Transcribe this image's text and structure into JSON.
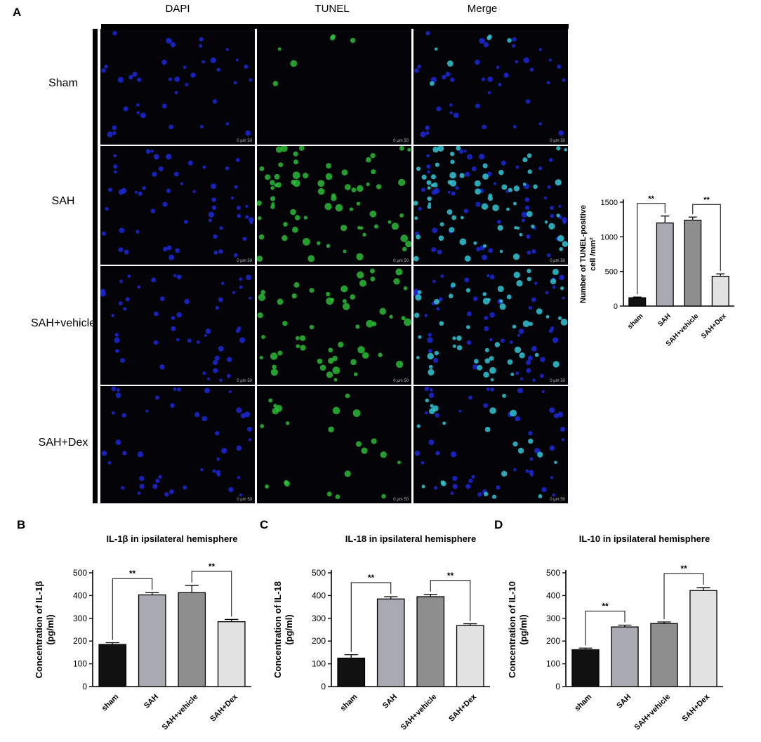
{
  "panels": {
    "A": {
      "letter": "A",
      "column_headers": [
        "DAPI",
        "TUNEL",
        "Merge"
      ],
      "row_headers": [
        "Sham",
        "SAH",
        "SAH+vehicle",
        "SAH+Dex"
      ],
      "scale_bar_label": "0    μm    50",
      "micrograph_colors": {
        "DAPI": "#1c28d8",
        "TUNEL": "#2ec43a",
        "Merge": "#31c6d4"
      },
      "chart_data": {
        "type": "bar",
        "categories": [
          "sham",
          "SAH",
          "SAH+vehicle",
          "SAH+Dex"
        ],
        "values": [
          120,
          1200,
          1240,
          430
        ],
        "errors": [
          10,
          100,
          45,
          35
        ],
        "title": "",
        "ylabel_line1": "Number of TUNEL-positive",
        "ylabel_line2": "cell /mm²",
        "ylim": [
          0,
          1500
        ],
        "yticks": [
          0,
          500,
          1000,
          1500
        ],
        "significance": [
          {
            "from": 0,
            "to": 1,
            "label": "**"
          },
          {
            "from": 2,
            "to": 3,
            "label": "**"
          }
        ],
        "colors": [
          "#111111",
          "#a9a9b2",
          "#8e8e8e",
          "#e2e2e2"
        ],
        "grid": false,
        "legend": "none"
      }
    },
    "B": {
      "letter": "B",
      "chart_data": {
        "type": "bar",
        "title": "IL-1β in ipsilateral hemisphere",
        "categories": [
          "sham",
          "SAH",
          "SAH+vehicle",
          "SAH+Dex"
        ],
        "values": [
          185,
          403,
          413,
          285
        ],
        "errors": [
          8,
          10,
          32,
          10
        ],
        "ylabel_line1": "Concentration of IL-1β",
        "ylabel_line2": "(pg/ml)",
        "ylim": [
          0,
          500
        ],
        "yticks": [
          0,
          100,
          200,
          300,
          400,
          500
        ],
        "significance": [
          {
            "from": 0,
            "to": 1,
            "label": "**"
          },
          {
            "from": 2,
            "to": 3,
            "label": "**"
          }
        ],
        "colors": [
          "#111111",
          "#a9a9b2",
          "#8e8e8e",
          "#e2e2e2"
        ],
        "grid": false,
        "legend": "none"
      }
    },
    "C": {
      "letter": "C",
      "chart_data": {
        "type": "bar",
        "title": "IL-18 in ipsilateral hemisphere",
        "categories": [
          "sham",
          "SAH",
          "SAH+vehicle",
          "SAH+Dex"
        ],
        "values": [
          125,
          385,
          395,
          268
        ],
        "errors": [
          15,
          10,
          10,
          8
        ],
        "ylabel_line1": "Concentration of IL-18",
        "ylabel_line2": "(pg/ml)",
        "ylim": [
          0,
          500
        ],
        "yticks": [
          0,
          100,
          200,
          300,
          400,
          500
        ],
        "significance": [
          {
            "from": 0,
            "to": 1,
            "label": "**"
          },
          {
            "from": 2,
            "to": 3,
            "label": "**"
          }
        ],
        "colors": [
          "#111111",
          "#a9a9b2",
          "#8e8e8e",
          "#e2e2e2"
        ],
        "grid": false,
        "legend": "none"
      }
    },
    "D": {
      "letter": "D",
      "chart_data": {
        "type": "bar",
        "title": "IL-10 in ipsilateral hemisphere",
        "categories": [
          "sham",
          "SAH",
          "SAH+vehicle",
          "SAH+Dex"
        ],
        "values": [
          162,
          262,
          277,
          422
        ],
        "errors": [
          7,
          8,
          7,
          13
        ],
        "ylabel_line1": "Concentration of IL-10",
        "ylabel_line2": "(pg/ml)",
        "ylim": [
          0,
          500
        ],
        "yticks": [
          0,
          100,
          200,
          300,
          400,
          500
        ],
        "significance": [
          {
            "from": 0,
            "to": 1,
            "label": "**"
          },
          {
            "from": 2,
            "to": 3,
            "label": "**"
          }
        ],
        "colors": [
          "#111111",
          "#a9a9b2",
          "#8e8e8e",
          "#e2e2e2"
        ],
        "grid": false,
        "legend": "none"
      }
    }
  }
}
